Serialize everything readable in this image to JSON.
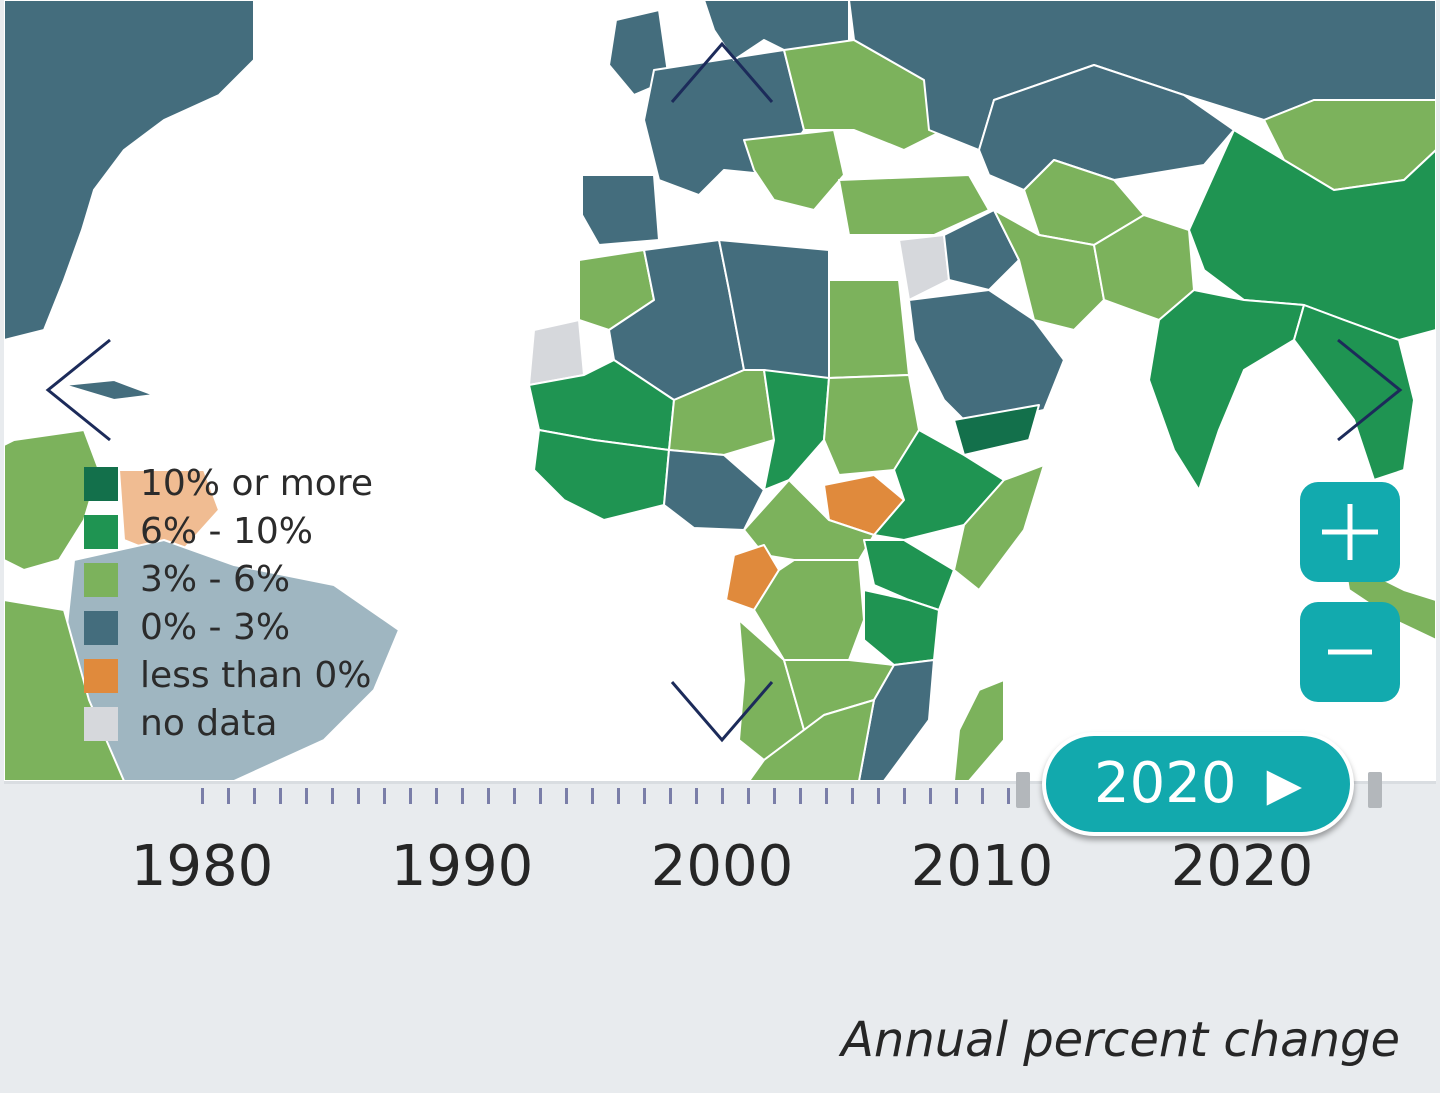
{
  "legend": {
    "items": [
      {
        "label": "10% or more",
        "color": "#13704b"
      },
      {
        "label": "6% - 10%",
        "color": "#1f9452"
      },
      {
        "label": "3% - 6%",
        "color": "#7cb25c"
      },
      {
        "label": "0% - 3%",
        "color": "#446d7d"
      },
      {
        "label": "less than 0%",
        "color": "#e08a3c"
      },
      {
        "label": "no data",
        "color": "#d6d8dc"
      }
    ]
  },
  "map": {
    "ocean_color": "#ffffff",
    "border_color": "#ffffff",
    "pan_arrow_color": "#1c2b5a",
    "pan_controls": [
      "pan-up",
      "pan-down",
      "pan-left",
      "pan-right"
    ],
    "zoom_in_icon": "plus-icon",
    "zoom_out_icon": "minus-icon",
    "accent_color": "#12aaae"
  },
  "timeline": {
    "year_labels": [
      "1980",
      "1990",
      "2000",
      "2010",
      "2020"
    ],
    "start_year": 1980,
    "end_year": 2020,
    "selected_year": "2020",
    "play_icon": "▶",
    "tick_color": "#7a7ea8"
  },
  "caption": "Annual percent change"
}
